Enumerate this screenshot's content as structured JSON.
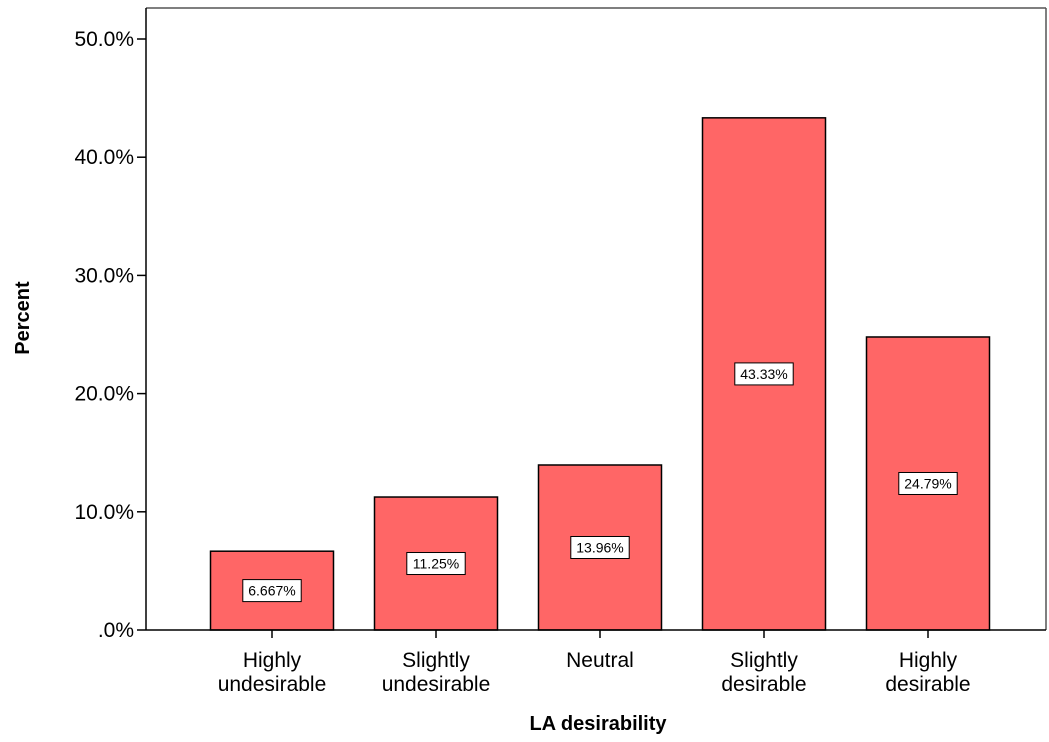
{
  "chart_data": {
    "type": "bar",
    "xlabel": "LA desirability",
    "ylabel": "Percent",
    "ylim": [
      0,
      50
    ],
    "yticks": [
      ".0%",
      "10.0%",
      "20.0%",
      "30.0%",
      "40.0%",
      "50.0%"
    ],
    "categories": [
      [
        "Highly",
        "undesirable"
      ],
      [
        "Slightly",
        "undesirable"
      ],
      [
        "Neutral"
      ],
      [
        "Slightly",
        "desirable"
      ],
      [
        "Highly",
        "desirable"
      ]
    ],
    "values": [
      6.667,
      11.25,
      13.96,
      43.33,
      24.79
    ],
    "data_labels": [
      "6.667%",
      "11.25%",
      "13.96%",
      "43.33%",
      "24.79%"
    ],
    "bar_color": "#ff6666",
    "bar_edge_color": "#000000",
    "grid": false,
    "legend": "none"
  }
}
